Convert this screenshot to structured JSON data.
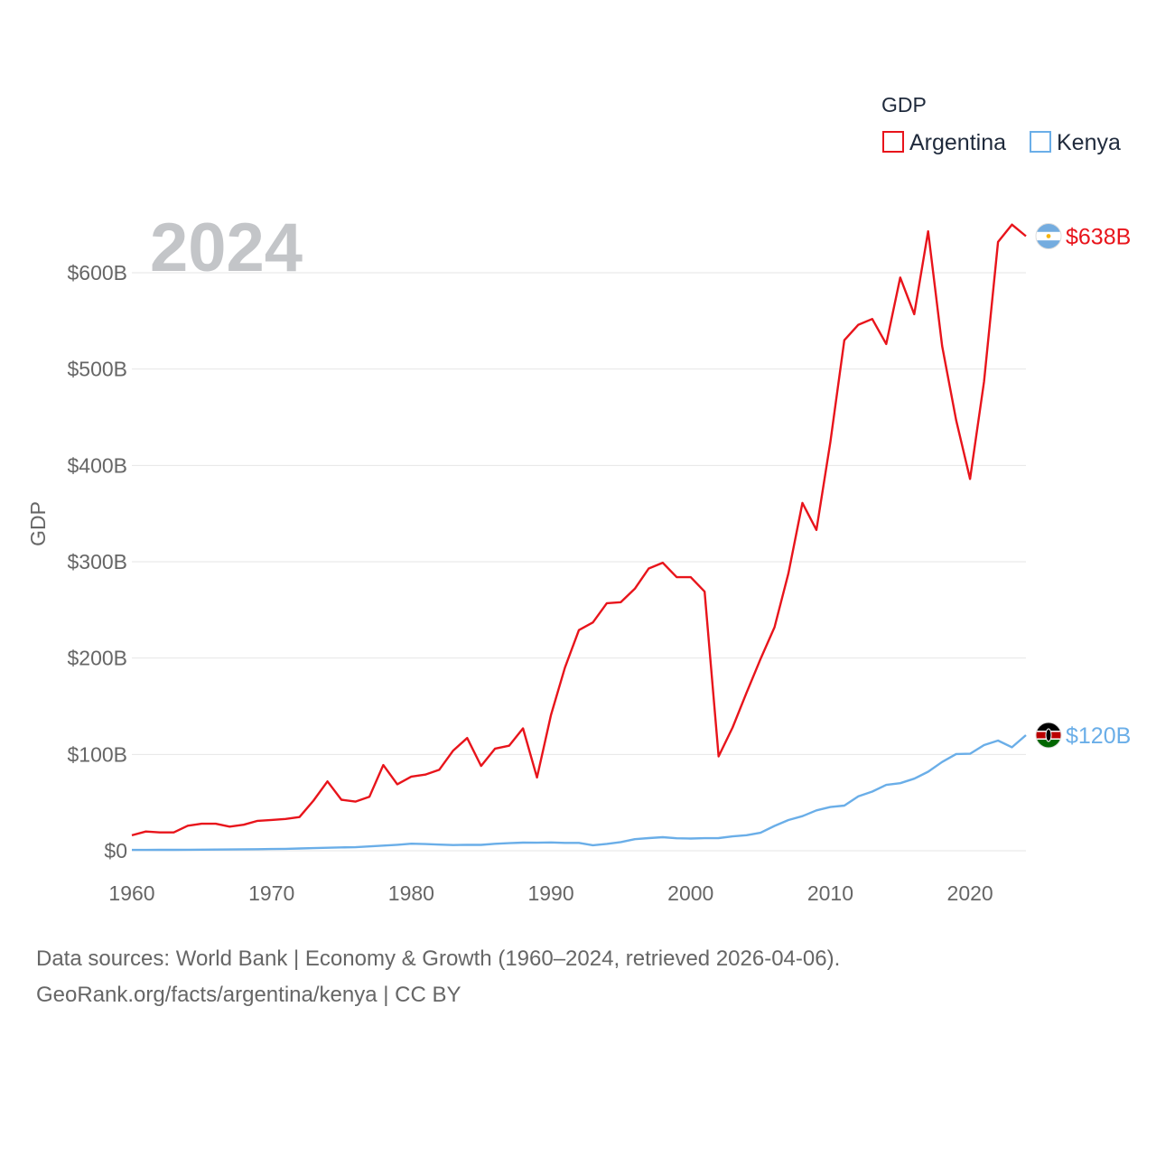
{
  "chart_data": {
    "type": "line",
    "year_label": "2024",
    "ylabel": "GDP",
    "xlabel": "",
    "legend_title": "GDP",
    "ylim": [
      0,
      650
    ],
    "xlim": [
      1960,
      2024
    ],
    "y_ticks": [
      {
        "value": 0,
        "label": "$0"
      },
      {
        "value": 100,
        "label": "$100B"
      },
      {
        "value": 200,
        "label": "$200B"
      },
      {
        "value": 300,
        "label": "$300B"
      },
      {
        "value": 400,
        "label": "$400B"
      },
      {
        "value": 500,
        "label": "$500B"
      },
      {
        "value": 600,
        "label": "$600B"
      }
    ],
    "x_ticks": [
      {
        "value": 1960,
        "label": "1960"
      },
      {
        "value": 1970,
        "label": "1970"
      },
      {
        "value": 1980,
        "label": "1980"
      },
      {
        "value": 1990,
        "label": "1990"
      },
      {
        "value": 2000,
        "label": "2000"
      },
      {
        "value": 2010,
        "label": "2010"
      },
      {
        "value": 2020,
        "label": "2020"
      }
    ],
    "x": [
      1960,
      1961,
      1962,
      1963,
      1964,
      1965,
      1966,
      1967,
      1968,
      1969,
      1970,
      1971,
      1972,
      1973,
      1974,
      1975,
      1976,
      1977,
      1978,
      1979,
      1980,
      1981,
      1982,
      1983,
      1984,
      1985,
      1986,
      1987,
      1988,
      1989,
      1990,
      1991,
      1992,
      1993,
      1994,
      1995,
      1996,
      1997,
      1998,
      1999,
      2000,
      2001,
      2002,
      2003,
      2004,
      2005,
      2006,
      2007,
      2008,
      2009,
      2010,
      2011,
      2012,
      2013,
      2014,
      2015,
      2016,
      2017,
      2018,
      2019,
      2020,
      2021,
      2022,
      2023,
      2024
    ],
    "series": [
      {
        "name": "Argentina",
        "color": "#e8141b",
        "end_label": "$638B",
        "flag_icon": "argentina-flag-icon",
        "values": [
          16,
          20,
          19,
          19,
          26,
          28,
          28,
          25,
          27,
          31,
          32,
          33,
          35,
          52,
          72,
          53,
          51,
          56,
          89,
          69,
          77,
          79,
          84,
          104,
          117,
          88,
          106,
          109,
          127,
          76,
          141,
          190,
          229,
          237,
          257,
          258,
          272,
          293,
          299,
          284,
          284,
          269,
          98,
          128,
          164,
          199,
          232,
          288,
          361,
          333,
          424,
          530,
          546,
          552,
          526,
          595,
          557,
          643,
          524,
          447,
          386,
          487,
          632,
          650,
          638
        ]
      },
      {
        "name": "Kenya",
        "color": "#6aaee8",
        "end_label": "$120B",
        "flag_icon": "kenya-flag-icon",
        "values": [
          0.8,
          0.8,
          0.9,
          0.9,
          1.0,
          1.1,
          1.2,
          1.3,
          1.5,
          1.6,
          1.8,
          2.0,
          2.3,
          2.7,
          3.1,
          3.5,
          3.7,
          4.5,
          5.3,
          6.2,
          7.3,
          6.9,
          6.4,
          5.9,
          6.2,
          6.1,
          7.2,
          7.9,
          8.4,
          8.3,
          8.6,
          8.2,
          8.2,
          5.7,
          7.1,
          9.0,
          12.0,
          13.1,
          14.1,
          12.9,
          12.7,
          12.99,
          13.1,
          14.9,
          16.1,
          18.7,
          25.8,
          31.9,
          35.9,
          41.9,
          45.4,
          46.9,
          56.4,
          61.4,
          68.3,
          70.1,
          74.8,
          82.0,
          92.2,
          100.4,
          100.7,
          109.7,
          114.4,
          107.4,
          120
        ]
      }
    ]
  },
  "footer": {
    "source_line": "Data sources: World Bank | Economy & Growth (1960–2024, retrieved 2026-04-06).",
    "credit_line": "GeoRank.org/facts/argentina/kenya | CC BY"
  }
}
